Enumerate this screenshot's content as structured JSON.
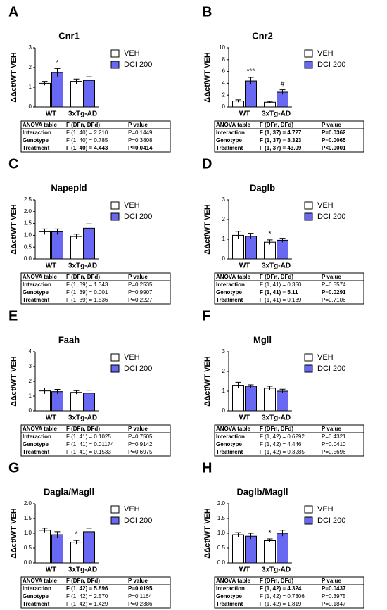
{
  "chart_data": [
    {
      "type": "bar",
      "panel": "A",
      "title": "Cnr1",
      "y_label": "ΔΔct/WT VEH",
      "categories": [
        "WT",
        "3xTg-AD"
      ],
      "series": [
        {
          "name": "VEH",
          "color": "#ffffff",
          "values": [
            1.2,
            1.3
          ],
          "errors": [
            0.1,
            0.12
          ],
          "annotations": [
            null,
            null
          ]
        },
        {
          "name": "DCI 200",
          "color": "#6868f2",
          "values": [
            1.75,
            1.35
          ],
          "errors": [
            0.2,
            0.18
          ],
          "annotations": [
            "*",
            null
          ]
        }
      ],
      "ylim": [
        0,
        3
      ],
      "yticks": [
        0,
        1,
        2,
        3
      ],
      "table": {
        "header": [
          "ANOVA table",
          "F (DFn, DFd)",
          "P value"
        ],
        "rows": [
          [
            "Interaction",
            "F (1, 40) = 2.210",
            "P=0.1449"
          ],
          [
            "Genotype",
            "F (1, 40) = 0.785",
            "P=0.3808"
          ],
          [
            "Treatment",
            "F (1, 40) = 4.443",
            "P=0.0414"
          ]
        ],
        "bold_rows": [
          false,
          false,
          true
        ]
      }
    },
    {
      "type": "bar",
      "panel": "B",
      "title": "Cnr2",
      "y_label": "ΔΔct/WT VEH",
      "categories": [
        "WT",
        "3xTg-AD"
      ],
      "series": [
        {
          "name": "VEH",
          "color": "#ffffff",
          "values": [
            1.0,
            0.8
          ],
          "errors": [
            0.2,
            0.15
          ],
          "annotations": [
            null,
            null
          ]
        },
        {
          "name": "DCI 200",
          "color": "#6868f2",
          "values": [
            4.4,
            2.5
          ],
          "errors": [
            0.6,
            0.4
          ],
          "annotations": [
            "***",
            "#"
          ]
        }
      ],
      "ylim": [
        0,
        10
      ],
      "yticks": [
        0,
        2,
        4,
        6,
        8,
        10
      ],
      "table": {
        "header": [
          "ANOVA table",
          "F (DFn, DFd)",
          "P value"
        ],
        "rows": [
          [
            "Interaction",
            "F (1, 37) = 4.727",
            "P=0.0362"
          ],
          [
            "Genotype",
            "F (1, 37) = 8.323",
            "P=0.0065"
          ],
          [
            "Treatment",
            "F (1, 37) = 43.09",
            "P<0.0001"
          ]
        ],
        "bold_rows": [
          true,
          true,
          true
        ]
      }
    },
    {
      "type": "bar",
      "panel": "C",
      "title": "Napepld",
      "y_label": "ΔΔct/WT VEH",
      "categories": [
        "WT",
        "3xTg-AD"
      ],
      "series": [
        {
          "name": "VEH",
          "color": "#ffffff",
          "values": [
            1.15,
            0.95
          ],
          "errors": [
            0.12,
            0.1
          ],
          "annotations": [
            null,
            null
          ]
        },
        {
          "name": "DCI 200",
          "color": "#6868f2",
          "values": [
            1.15,
            1.3
          ],
          "errors": [
            0.12,
            0.18
          ],
          "annotations": [
            null,
            null
          ]
        }
      ],
      "ylim": [
        0,
        2.5
      ],
      "yticks": [
        {
          "value": 0,
          "label": "0.0"
        },
        0.5,
        {
          "value": 1,
          "label": "1.0"
        },
        1.5,
        {
          "value": 2,
          "label": "2.0"
        },
        2.5
      ],
      "table": {
        "header": [
          "ANOVA table",
          "F (DFn, DFd)",
          "P value"
        ],
        "rows": [
          [
            "Interaction",
            "F (1, 39) = 1.343",
            "P=0.2535"
          ],
          [
            "Genotype",
            "F (1, 39) = 0.001",
            "P=0.9907"
          ],
          [
            "Treatment",
            "F (1, 39) = 1.536",
            "P=0.2227"
          ]
        ],
        "bold_rows": [
          false,
          false,
          false
        ]
      }
    },
    {
      "type": "bar",
      "panel": "D",
      "title": "Daglb",
      "y_label": "ΔΔct/WT VEH",
      "categories": [
        "WT",
        "3xTg-AD"
      ],
      "series": [
        {
          "name": "VEH",
          "color": "#ffffff",
          "values": [
            1.2,
            0.85
          ],
          "errors": [
            0.2,
            0.12
          ],
          "annotations": [
            null,
            "*"
          ]
        },
        {
          "name": "DCI 200",
          "color": "#6868f2",
          "values": [
            1.15,
            0.95
          ],
          "errors": [
            0.15,
            0.1
          ],
          "annotations": [
            null,
            null
          ]
        }
      ],
      "ylim": [
        0,
        3
      ],
      "yticks": [
        0,
        1,
        2,
        3
      ],
      "table": {
        "header": [
          "ANOVA table",
          "F (DFn, DFd)",
          "P value"
        ],
        "rows": [
          [
            "Interaction",
            "F (1, 41) = 0.350",
            "P=0.5574"
          ],
          [
            "Genotype",
            "F (1, 41) = 5.11",
            "P=0.0291"
          ],
          [
            "Treatment",
            "F (1, 41) = 0.139",
            "P=0.7106"
          ]
        ],
        "bold_rows": [
          false,
          true,
          false
        ]
      }
    },
    {
      "type": "bar",
      "panel": "E",
      "title": "Faah",
      "y_label": "ΔΔct/WT VEH",
      "categories": [
        "WT",
        "3xTg-AD"
      ],
      "series": [
        {
          "name": "VEH",
          "color": "#ffffff",
          "values": [
            1.35,
            1.25
          ],
          "errors": [
            0.2,
            0.12
          ],
          "annotations": [
            null,
            null
          ]
        },
        {
          "name": "DCI 200",
          "color": "#6868f2",
          "values": [
            1.3,
            1.2
          ],
          "errors": [
            0.15,
            0.2
          ],
          "annotations": [
            null,
            null
          ]
        }
      ],
      "ylim": [
        0,
        4
      ],
      "yticks": [
        0,
        1,
        2,
        3,
        4
      ],
      "table": {
        "header": [
          "ANOVA table",
          "F (DFn, DFd)",
          "P value"
        ],
        "rows": [
          [
            "Interaction",
            "F (1, 41) = 0.1025",
            "P=0.7505"
          ],
          [
            "Genotype",
            "F (1, 41) = 0.01174",
            "P=0.9142"
          ],
          [
            "Treatment",
            "F (1, 41) = 0.1533",
            "P=0.6975"
          ]
        ],
        "bold_rows": [
          false,
          false,
          false
        ]
      }
    },
    {
      "type": "bar",
      "panel": "F",
      "title": "Mgll",
      "y_label": "ΔΔct/WT VEH",
      "categories": [
        "WT",
        "3xTg-AD"
      ],
      "series": [
        {
          "name": "VEH",
          "color": "#ffffff",
          "values": [
            1.3,
            1.15
          ],
          "errors": [
            0.15,
            0.1
          ],
          "annotations": [
            null,
            null
          ]
        },
        {
          "name": "DCI 200",
          "color": "#6868f2",
          "values": [
            1.25,
            1.0
          ],
          "errors": [
            0.07,
            0.1
          ],
          "annotations": [
            null,
            null
          ]
        }
      ],
      "ylim": [
        0,
        3
      ],
      "yticks": [
        0,
        1,
        2,
        3
      ],
      "table": {
        "header": [
          "ANOVA table",
          "F (DFn, DFd)",
          "P value"
        ],
        "rows": [
          [
            "Interaction",
            "F (1, 42) = 0.6292",
            "P=0.4321"
          ],
          [
            "Genotype",
            "F (1, 42) = 4.446",
            "P=0.0410"
          ],
          [
            "Treatment",
            "F (1, 42) = 0.3285",
            "P=0.5696"
          ]
        ],
        "bold_rows": [
          false,
          false,
          false
        ]
      }
    },
    {
      "type": "bar",
      "panel": "G",
      "title": "Dagla/Magll",
      "y_label": "ΔΔct/WT VEH",
      "categories": [
        "WT",
        "3xTg-AD"
      ],
      "series": [
        {
          "name": "VEH",
          "color": "#ffffff",
          "values": [
            1.1,
            0.7
          ],
          "errors": [
            0.07,
            0.06
          ],
          "annotations": [
            null,
            "*"
          ]
        },
        {
          "name": "DCI 200",
          "color": "#6868f2",
          "values": [
            0.95,
            1.05
          ],
          "errors": [
            0.1,
            0.12
          ],
          "annotations": [
            null,
            null
          ]
        }
      ],
      "ylim": [
        0,
        2
      ],
      "yticks": [
        {
          "value": 0,
          "label": "0.0"
        },
        0.5,
        {
          "value": 1,
          "label": "1.0"
        },
        1.5,
        {
          "value": 2,
          "label": "2.0"
        }
      ],
      "table": {
        "header": [
          "ANOVA table",
          "F (DFn, DFd)",
          "P value"
        ],
        "rows": [
          [
            "Interaction",
            "F (1, 42) = 5.896",
            "P=0.0195"
          ],
          [
            "Genotype",
            "F (1, 42) = 2.570",
            "P=0.1164"
          ],
          [
            "Treatment",
            "F (1, 42) = 1.429",
            "P=0.2386"
          ]
        ],
        "bold_rows": [
          true,
          false,
          false
        ]
      }
    },
    {
      "type": "bar",
      "panel": "H",
      "title": "Daglb/Magll",
      "y_label": "ΔΔct/WT VEH",
      "categories": [
        "WT",
        "3xTg-AD"
      ],
      "series": [
        {
          "name": "VEH",
          "color": "#ffffff",
          "values": [
            0.95,
            0.75
          ],
          "errors": [
            0.07,
            0.06
          ],
          "annotations": [
            null,
            "*"
          ]
        },
        {
          "name": "DCI 200",
          "color": "#6868f2",
          "values": [
            0.9,
            1.0
          ],
          "errors": [
            0.1,
            0.1
          ],
          "annotations": [
            null,
            null
          ]
        }
      ],
      "ylim": [
        0,
        2
      ],
      "yticks": [
        {
          "value": 0,
          "label": "0.0"
        },
        0.5,
        {
          "value": 1,
          "label": "1.0"
        },
        1.5,
        {
          "value": 2,
          "label": "2.0"
        }
      ],
      "table": {
        "header": [
          "ANOVA table",
          "F (DFn, DFd)",
          "P value"
        ],
        "rows": [
          [
            "Interaction",
            "F (1, 42) = 4.324",
            "P=0.0437"
          ],
          [
            "Genotype",
            "F (1, 42) = 0.7306",
            "P=0.3975"
          ],
          [
            "Treatment",
            "F (1, 42) = 1.819",
            "P=0.1847"
          ]
        ],
        "bold_rows": [
          true,
          false,
          false
        ]
      }
    }
  ]
}
